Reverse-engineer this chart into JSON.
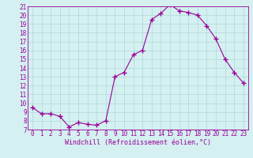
{
  "x": [
    0,
    1,
    2,
    3,
    4,
    5,
    6,
    7,
    8,
    9,
    10,
    11,
    12,
    13,
    14,
    15,
    16,
    17,
    18,
    19,
    20,
    21,
    22,
    23
  ],
  "y": [
    9.5,
    8.8,
    8.8,
    8.5,
    7.3,
    7.8,
    7.6,
    7.5,
    8.0,
    13.0,
    13.5,
    15.5,
    16.0,
    19.5,
    20.2,
    21.2,
    20.5,
    20.3,
    20.0,
    18.8,
    17.3,
    15.0,
    13.5,
    12.3
  ],
  "ylim": [
    7,
    21
  ],
  "yticks": [
    7,
    8,
    9,
    10,
    11,
    12,
    13,
    14,
    15,
    16,
    17,
    18,
    19,
    20,
    21
  ],
  "xlim": [
    -0.5,
    23.5
  ],
  "xticks": [
    0,
    1,
    2,
    3,
    4,
    5,
    6,
    7,
    8,
    9,
    10,
    11,
    12,
    13,
    14,
    15,
    16,
    17,
    18,
    19,
    20,
    21,
    22,
    23
  ],
  "xlabel": "Windchill (Refroidissement éolien,°C)",
  "line_color": "#990099",
  "marker": "+",
  "marker_size": 4,
  "background_color": "#d4f0f0",
  "grid_color": "#b0d8d8",
  "tick_label_fontsize": 5.5,
  "xlabel_fontsize": 6.0
}
